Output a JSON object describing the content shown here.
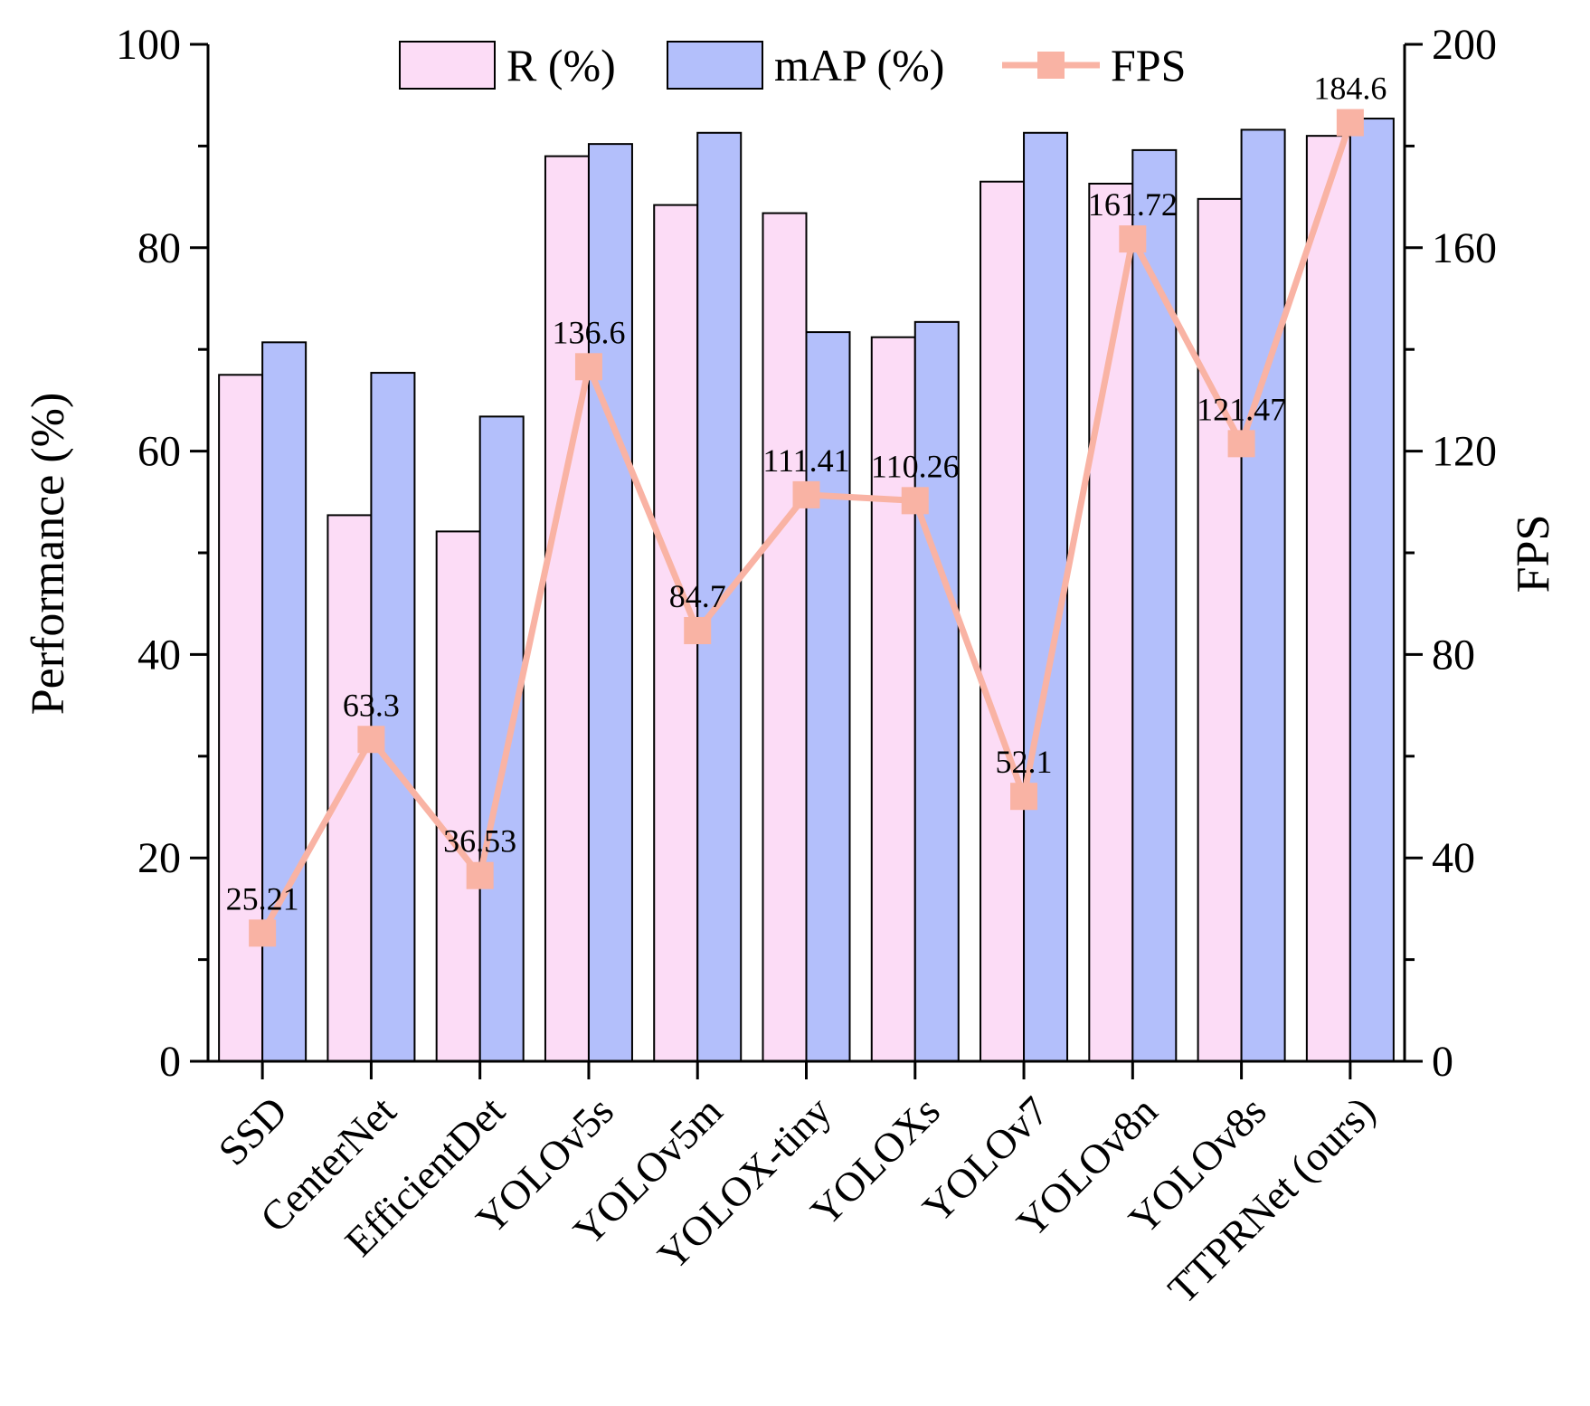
{
  "chart_data": {
    "type": "bar",
    "categories": [
      "SSD",
      "CenterNet",
      "EfficientDet",
      "YOLOv5s",
      "YOLOv5m",
      "YOLOX-tiny",
      "YOLOXs",
      "YOLOv7",
      "YOLOv8n",
      "YOLOv8s",
      "TTPRNet (ours)"
    ],
    "series": [
      {
        "name": "R (%)",
        "axis": "left",
        "kind": "bar",
        "color": "#fcdcf6",
        "values": [
          67.5,
          53.7,
          52.1,
          89.0,
          84.2,
          83.4,
          71.2,
          86.5,
          86.3,
          84.8,
          91.0
        ]
      },
      {
        "name": "mAP (%)",
        "axis": "left",
        "kind": "bar",
        "color": "#b3bffb",
        "values": [
          70.7,
          67.7,
          63.4,
          90.2,
          91.3,
          71.7,
          72.7,
          91.3,
          89.6,
          91.6,
          92.7
        ]
      },
      {
        "name": "FPS",
        "axis": "right",
        "kind": "line",
        "color": "#f9b3a4",
        "values": [
          25.21,
          63.3,
          36.53,
          136.6,
          84.7,
          111.41,
          110.26,
          52.1,
          161.72,
          121.47,
          184.6
        ],
        "labels": [
          "25.21",
          "63.3",
          "36.53",
          "136.6",
          "84.7",
          "111.41",
          "110.26",
          "52.1",
          "161.72",
          "121.47",
          "184.6"
        ]
      }
    ],
    "ylabel": "Performance (%)",
    "y2label": "FPS",
    "ylim": [
      0,
      100
    ],
    "y2lim": [
      0,
      200
    ],
    "yticks": [
      "0",
      "20",
      "40",
      "60",
      "80",
      "100"
    ],
    "y2ticks": [
      "0",
      "40",
      "80",
      "120",
      "160",
      "200"
    ],
    "legend": {
      "position": "top",
      "items": [
        "R (%)",
        "mAP (%)",
        "FPS"
      ]
    },
    "grid": false
  }
}
